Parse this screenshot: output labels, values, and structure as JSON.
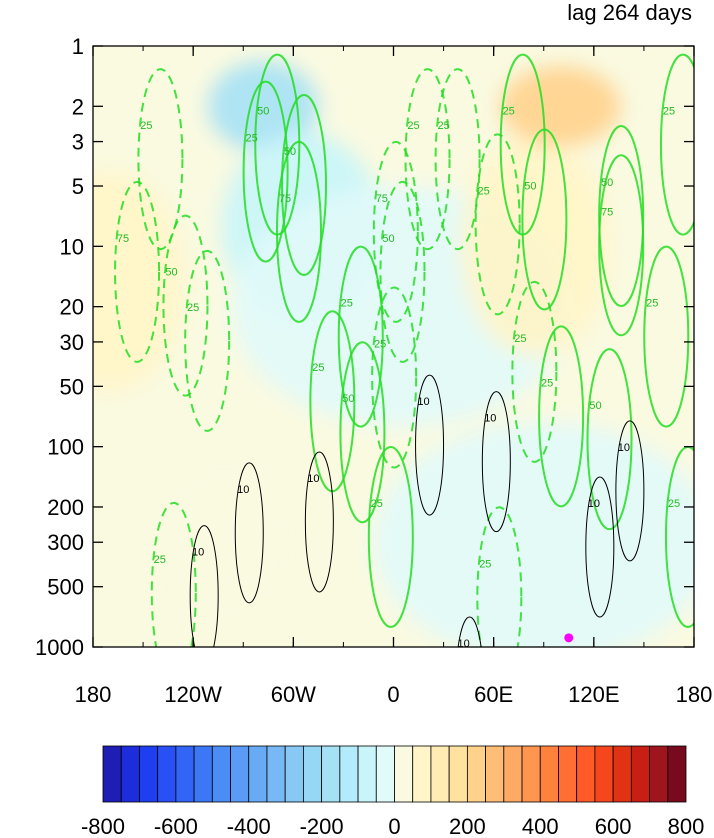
{
  "chart_data": {
    "type": "heatmap",
    "title_right": "lag 264 days",
    "xlabel": "",
    "ylabel": "",
    "x_ticks": [
      {
        "value": -180,
        "label": "180"
      },
      {
        "value": -120,
        "label": "120W"
      },
      {
        "value": -60,
        "label": "60W"
      },
      {
        "value": 0,
        "label": "0"
      },
      {
        "value": 60,
        "label": "60E"
      },
      {
        "value": 120,
        "label": "120E"
      },
      {
        "value": 180,
        "label": "180"
      }
    ],
    "y_scale": "log",
    "y_reversed": true,
    "ylim": [
      1,
      1000
    ],
    "y_ticks": [
      {
        "value": 1,
        "label": "1"
      },
      {
        "value": 2,
        "label": "2"
      },
      {
        "value": 3,
        "label": "3"
      },
      {
        "value": 5,
        "label": "5"
      },
      {
        "value": 10,
        "label": "10"
      },
      {
        "value": 20,
        "label": "20"
      },
      {
        "value": 30,
        "label": "30"
      },
      {
        "value": 50,
        "label": "50"
      },
      {
        "value": 100,
        "label": "100"
      },
      {
        "value": 200,
        "label": "200"
      },
      {
        "value": 300,
        "label": "300"
      },
      {
        "value": 500,
        "label": "500"
      },
      {
        "value": 1000,
        "label": "1000"
      }
    ],
    "colorbar": {
      "levels": [
        -800,
        -750,
        -700,
        -650,
        -600,
        -550,
        -500,
        -450,
        -400,
        -350,
        -300,
        -250,
        -200,
        -150,
        -100,
        -50,
        0,
        50,
        100,
        150,
        200,
        250,
        300,
        350,
        400,
        450,
        500,
        550,
        600,
        650,
        700,
        750,
        800
      ],
      "labels": [
        {
          "value": -800,
          "label": "-800"
        },
        {
          "value": -600,
          "label": "-600"
        },
        {
          "value": -400,
          "label": "-400"
        },
        {
          "value": -200,
          "label": "-200"
        },
        {
          "value": 0,
          "label": "0"
        },
        {
          "value": 200,
          "label": "200"
        },
        {
          "value": 400,
          "label": "400"
        },
        {
          "value": 600,
          "label": "600"
        },
        {
          "value": 800,
          "label": "800"
        }
      ],
      "colors": [
        "#1e1eb4",
        "#1e2ddc",
        "#1e3ff0",
        "#2850f5",
        "#3264f5",
        "#3c78f5",
        "#4b8cf5",
        "#5a9bf5",
        "#69aaf5",
        "#78b9f5",
        "#87c8f5",
        "#96d7f5",
        "#a5e1f5",
        "#b4ebfa",
        "#c8f5fa",
        "#e1fafa",
        "#fafae1",
        "#fff5c8",
        "#ffebb4",
        "#ffe1a0",
        "#ffd28c",
        "#ffbe78",
        "#ffaa64",
        "#ff9650",
        "#ff823c",
        "#ff6e32",
        "#ff5a28",
        "#f5461e",
        "#e13214",
        "#c81e14",
        "#a0141e",
        "#780a1e"
      ]
    },
    "shading_regions": [
      {
        "value": -175,
        "x": -78,
        "y": 2
      },
      {
        "value": -75,
        "x": -55,
        "y": 8
      },
      {
        "value": -25,
        "x": 5,
        "y": 20
      },
      {
        "value": 75,
        "x": 85,
        "y": 10
      },
      {
        "value": 225,
        "x": 100,
        "y": 2
      },
      {
        "value": 75,
        "x": -170,
        "y": 15
      },
      {
        "value": 25,
        "x": -100,
        "y": 300
      },
      {
        "value": -25,
        "x": 90,
        "y": 300
      }
    ],
    "green_contour_labels": [
      {
        "text": "50",
        "x": -78,
        "y": 2.2,
        "dashed": false
      },
      {
        "text": "25",
        "x": -85,
        "y": 3,
        "dashed": false
      },
      {
        "text": "50",
        "x": -62,
        "y": 3.5,
        "dashed": false
      },
      {
        "text": "75",
        "x": -65,
        "y": 6,
        "dashed": false
      },
      {
        "text": "25",
        "x": -148,
        "y": 2.6,
        "dashed": true
      },
      {
        "text": "75",
        "x": -162,
        "y": 9.5,
        "dashed": true
      },
      {
        "text": "50",
        "x": -133,
        "y": 14,
        "dashed": true
      },
      {
        "text": "25",
        "x": -120,
        "y": 21,
        "dashed": true
      },
      {
        "text": "25",
        "x": -28,
        "y": 20,
        "dashed": false
      },
      {
        "text": "25",
        "x": -45,
        "y": 42,
        "dashed": false
      },
      {
        "text": "50",
        "x": -27,
        "y": 60,
        "dashed": false
      },
      {
        "text": "25",
        "x": 12,
        "y": 2.6,
        "dashed": true
      },
      {
        "text": "75",
        "x": -7,
        "y": 6,
        "dashed": true
      },
      {
        "text": "50",
        "x": -3,
        "y": 9.5,
        "dashed": true
      },
      {
        "text": "25",
        "x": -8,
        "y": 32,
        "dashed": true
      },
      {
        "text": "25",
        "x": 30,
        "y": 2.6,
        "dashed": true
      },
      {
        "text": "25",
        "x": 54,
        "y": 5.5,
        "dashed": true
      },
      {
        "text": "25",
        "x": 69,
        "y": 2.2,
        "dashed": false
      },
      {
        "text": "25",
        "x": 76,
        "y": 30,
        "dashed": true
      },
      {
        "text": "50",
        "x": 82,
        "y": 5.2,
        "dashed": false
      },
      {
        "text": "50",
        "x": 128,
        "y": 5,
        "dashed": false
      },
      {
        "text": "75",
        "x": 128,
        "y": 7,
        "dashed": false
      },
      {
        "text": "25",
        "x": 165,
        "y": 2.2,
        "dashed": false
      },
      {
        "text": "25",
        "x": 92,
        "y": 50,
        "dashed": false
      },
      {
        "text": "50",
        "x": 121,
        "y": 65,
        "dashed": false
      },
      {
        "text": "25",
        "x": 155,
        "y": 20,
        "dashed": false
      },
      {
        "text": "25",
        "x": 168,
        "y": 200,
        "dashed": false
      },
      {
        "text": "25",
        "x": -140,
        "y": 380,
        "dashed": true
      },
      {
        "text": "25",
        "x": -10,
        "y": 200,
        "dashed": false
      },
      {
        "text": "25",
        "x": 55,
        "y": 400,
        "dashed": true
      }
    ],
    "black_contour_labels": [
      {
        "text": "10",
        "x": 18,
        "y": 62
      },
      {
        "text": "10",
        "x": 58,
        "y": 75
      },
      {
        "text": "10",
        "x": -90,
        "y": 170
      },
      {
        "text": "10",
        "x": -48,
        "y": 150
      },
      {
        "text": "10",
        "x": -117,
        "y": 350
      },
      {
        "text": "10",
        "x": 138,
        "y": 105
      },
      {
        "text": "10",
        "x": 120,
        "y": 200
      },
      {
        "text": "10",
        "x": 42,
        "y": 1000
      }
    ],
    "marker": {
      "x": 105,
      "y": 900,
      "color": "#ff00ff"
    }
  }
}
